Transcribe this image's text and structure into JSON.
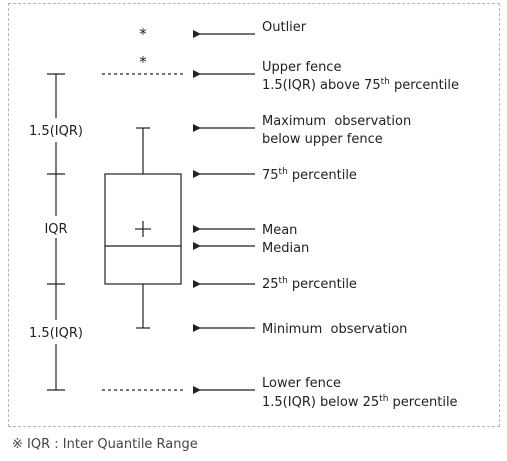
{
  "labels": {
    "outlier": "Outlier",
    "upper_fence_line1": "Upper fence",
    "upper_fence_line2_pre": "1.5(IQR) above 75",
    "upper_fence_line2_sup": "th",
    "upper_fence_line2_post": " percentile",
    "max_obs_line1": "Maximum  observation",
    "max_obs_line2": "below upper fence",
    "p75_pre": "75",
    "p75_sup": "th",
    "p75_post": " percentile",
    "mean": "Mean",
    "median": "Median",
    "p25_pre": "25",
    "p25_sup": "th",
    "p25_post": " percentile",
    "min_obs": "Minimum  observation",
    "lower_fence_line1": "Lower fence",
    "lower_fence_line2_pre": "1.5(IQR) below 25",
    "lower_fence_line2_sup": "th",
    "lower_fence_line2_post": " percentile"
  },
  "left_scale": {
    "upper": "1.5(IQR)",
    "middle": "IQR",
    "lower": "1.5(IQR)"
  },
  "outlier_symbol": "*",
  "footnote": {
    "symbol": "※",
    "text": " IQR : Inter Quantile Range"
  },
  "colors": {
    "line": "#222222",
    "frame": "#b5b5b5"
  }
}
